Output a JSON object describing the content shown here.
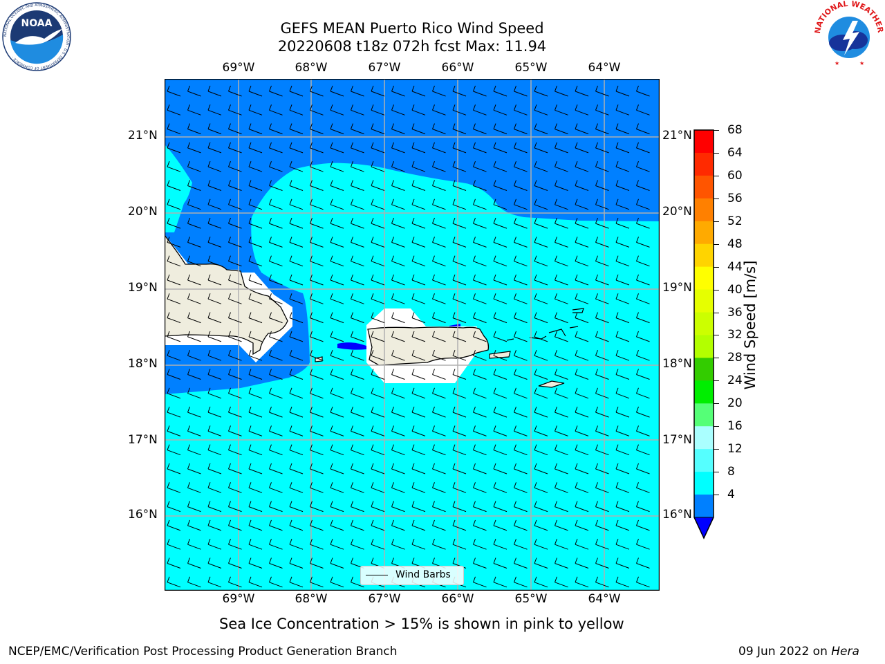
{
  "title": {
    "line1": "GEFS MEAN Puerto Rico Wind Speed",
    "line2": "20220608 t18z 072h fcst   Max: 11.94"
  },
  "axes": {
    "lon_labels": [
      "69°W",
      "68°W",
      "67°W",
      "66°W",
      "65°W",
      "64°W"
    ],
    "lat_labels": [
      "21°N",
      "20°N",
      "19°N",
      "18°N",
      "17°N",
      "16°N"
    ]
  },
  "colorbar": {
    "label": "Wind Speed [m/s]",
    "ticks": [
      "68",
      "64",
      "60",
      "56",
      "52",
      "48",
      "44",
      "40",
      "36",
      "32",
      "28",
      "24",
      "20",
      "16",
      "12",
      "8",
      "4"
    ],
    "colors": [
      "#ff0000",
      "#ff2a00",
      "#ff5500",
      "#ff8000",
      "#ffaa00",
      "#ffd400",
      "#ffff00",
      "#e6ff00",
      "#ccff00",
      "#b3ff00",
      "#33cc00",
      "#00ee00",
      "#55ff77",
      "#aaffff",
      "#55ffff",
      "#00ffff",
      "#0080ff"
    ],
    "underflow_color": "#0000ff"
  },
  "legend": {
    "label": "Wind Barbs"
  },
  "map_colors": {
    "ocean_low": "#0080ff",
    "ocean_mid": "#00ffff",
    "land": "#efedde",
    "deep": "#0000ff"
  },
  "logos": {
    "noaa_text": "NOAA",
    "noaa_ring": "NATIONAL OCEANIC AND ATMOSPHERIC ADMINISTRATION · U.S. DEPARTMENT OF COMMERCE ·",
    "nws_ring": "NATIONAL WEATHER SERVICE"
  },
  "subtitle": "Sea Ice Concentration > 15% is shown in pink to yellow",
  "footer": {
    "left": "NCEP/EMC/Verification Post Processing Product Generation Branch",
    "date": "09 Jun 2022 on ",
    "machine": "Hera"
  }
}
